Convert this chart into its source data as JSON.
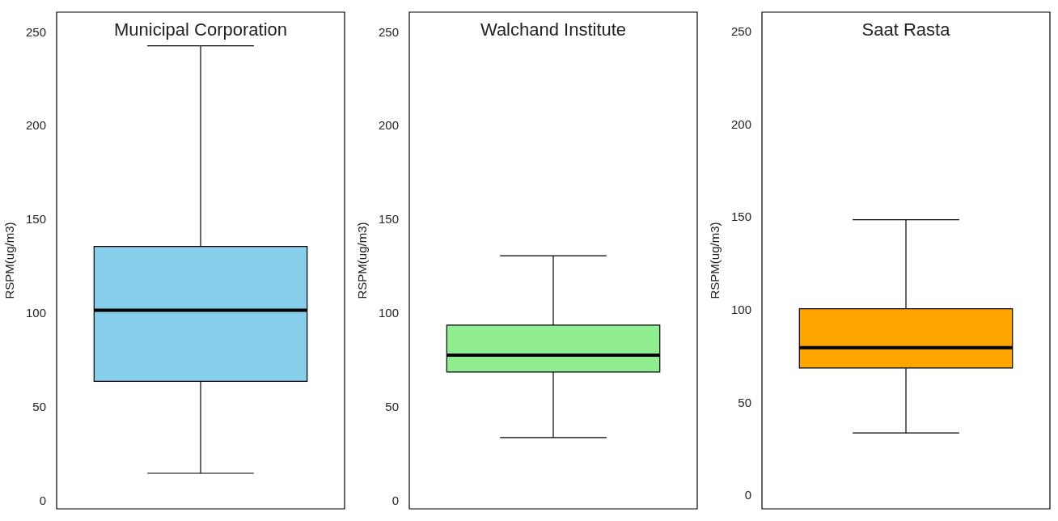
{
  "chart_data": [
    {
      "type": "box",
      "title": "Municipal Corporation",
      "ylabel": "RSPM(ug/m3)",
      "categories": [
        null
      ],
      "color": "#87ceeb",
      "boxes": [
        {
          "low": 15,
          "q1": 64,
          "median": 102,
          "q3": 136,
          "high": 243
        }
      ],
      "ylim": [
        -4,
        261
      ],
      "yticks": [
        0,
        50,
        100,
        150,
        200,
        250
      ],
      "tick_labels": "y",
      "grid": false,
      "legend": false
    },
    {
      "type": "box",
      "title": "Walchand Institute",
      "ylabel": "RSPM(ug/m3)",
      "categories": [
        null
      ],
      "color": "#90ee90",
      "boxes": [
        {
          "low": 34,
          "q1": 69,
          "median": 78,
          "q3": 94,
          "high": 131
        }
      ],
      "ylim": [
        -4,
        261
      ],
      "yticks": [
        0,
        50,
        100,
        150,
        200,
        250
      ],
      "tick_labels": "y",
      "grid": false,
      "legend": false
    },
    {
      "type": "box",
      "title": "Saat Rasta",
      "ylabel": "RSPM(ug/m3)",
      "categories": [
        null
      ],
      "color": "#ffa500",
      "boxes": [
        {
          "low": 34,
          "q1": 69,
          "median": 80,
          "q3": 101,
          "high": 149
        }
      ],
      "ylim": [
        -7,
        261
      ],
      "yticks": [
        0,
        50,
        100,
        150,
        200,
        250
      ],
      "tick_labels": "y",
      "grid": false,
      "legend": false
    }
  ]
}
